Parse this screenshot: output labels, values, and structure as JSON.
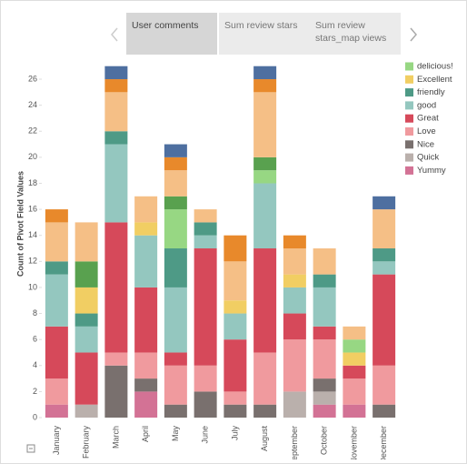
{
  "tabs": [
    "User comments",
    "Sum review stars",
    "Sum review stars_map views"
  ],
  "chart_data": {
    "type": "stacked-bar",
    "y_label": "Count of Pivot Field Values",
    "categories": [
      "January",
      "February",
      "March",
      "April",
      "May",
      "June",
      "July",
      "August",
      "September",
      "October",
      "November",
      "December"
    ],
    "ylim": [
      0,
      27.4
    ],
    "yticks": [
      0,
      2,
      4,
      6,
      8,
      10,
      12,
      14,
      16,
      18,
      20,
      22,
      24,
      26
    ],
    "series": [
      {
        "name": "Yummy",
        "color": "#d37295",
        "values": [
          1,
          0,
          0,
          2,
          0,
          0,
          0,
          0,
          0,
          1,
          1,
          0
        ]
      },
      {
        "name": "Quick",
        "color": "#bab0ac",
        "values": [
          0,
          1,
          0,
          0,
          0,
          0,
          0,
          0,
          2,
          1,
          0,
          0
        ]
      },
      {
        "name": "Nice",
        "color": "#79706e",
        "values": [
          0,
          0,
          4,
          1,
          1,
          2,
          1,
          1,
          0,
          1,
          0,
          1
        ]
      },
      {
        "name": "Love",
        "color": "#f09a9e",
        "values": [
          2,
          0,
          1,
          2,
          3,
          2,
          1,
          4,
          4,
          3,
          2,
          3
        ]
      },
      {
        "name": "Great",
        "color": "#d6495a",
        "values": [
          4,
          4,
          10,
          5,
          1,
          9,
          4,
          8,
          2,
          1,
          1,
          7
        ]
      },
      {
        "name": "good",
        "color": "#94c7bf",
        "values": [
          4,
          2,
          6,
          4,
          5,
          1,
          2,
          5,
          2,
          3,
          0,
          1
        ]
      },
      {
        "name": "friendly",
        "color": "#4e9a86",
        "values": [
          1,
          1,
          1,
          0,
          3,
          1,
          0,
          0,
          0,
          1,
          0,
          1
        ]
      },
      {
        "name": "Excellent",
        "color": "#f1ce63",
        "values": [
          0,
          2,
          0,
          1,
          0,
          0,
          1,
          0,
          1,
          0,
          1,
          0
        ]
      },
      {
        "name": "delicious!",
        "color": "#97d783",
        "values": [
          0,
          0,
          0,
          0,
          3,
          0,
          0,
          1,
          0,
          0,
          1,
          0
        ]
      },
      {
        "color": "#59a14f",
        "values": [
          0,
          2,
          0,
          0,
          1,
          0,
          0,
          1,
          0,
          0,
          0,
          0
        ]
      },
      {
        "color": "#f5bf86",
        "values": [
          3,
          3,
          3,
          2,
          2,
          1,
          3,
          5,
          2,
          2,
          1,
          3
        ]
      },
      {
        "color": "#e8892b",
        "values": [
          1,
          0,
          1,
          0,
          1,
          0,
          2,
          1,
          1,
          0,
          0,
          0
        ]
      },
      {
        "color": "#4e6fa0",
        "values": [
          0,
          0,
          1,
          0,
          1,
          0,
          0,
          1,
          0,
          0,
          0,
          1
        ]
      }
    ]
  }
}
